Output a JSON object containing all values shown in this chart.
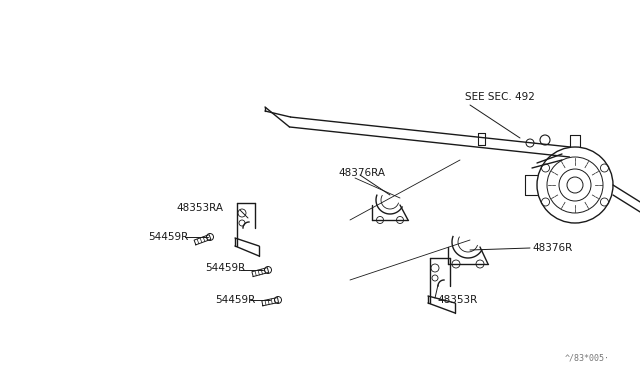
{
  "bg_color": "#ffffff",
  "line_color": "#1a1a1a",
  "watermark": "^/83*005·",
  "labels": {
    "SEE_SEC_492": "SEE SEC. 492",
    "48376RA": "48376RA",
    "48353RA": "48353RA",
    "54459R_1": "54459R",
    "54459R_2": "54459R",
    "54459R_3": "54459R",
    "48376R": "48376R",
    "48353R": "48353R"
  },
  "fontsize": 7.5,
  "watermark_fontsize": 6.0
}
